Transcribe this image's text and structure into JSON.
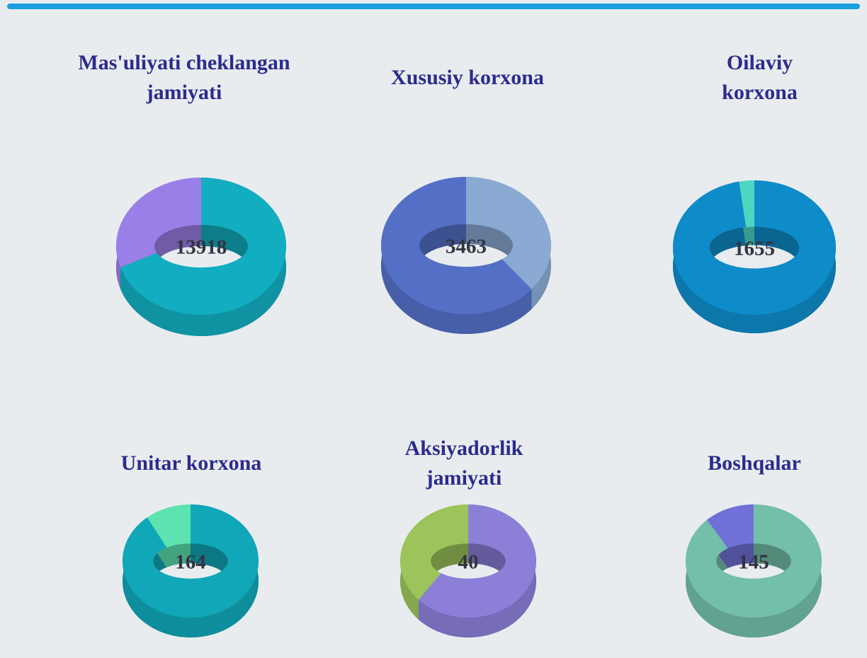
{
  "cards": [
    {
      "title": "Mas'uliyati cheklangan jamiyati",
      "total": 13918,
      "slices": [
        {
          "color": "#12adc0",
          "value": 70
        },
        {
          "color": "#9b7fe8",
          "value": 30
        }
      ]
    },
    {
      "title": "Xususiy korxona",
      "total": 3463,
      "slices": [
        {
          "color": "#8aaad4",
          "value": 36
        },
        {
          "color": "#5470c6",
          "value": 64
        }
      ]
    },
    {
      "title": "Oilaviy korxona",
      "total": 1655,
      "slices": [
        {
          "color": "#0e8cc9",
          "value": 97
        },
        {
          "color": "#4ed6c0",
          "value": 3
        }
      ]
    },
    {
      "title": "Unitar korxona",
      "total": 164,
      "slices": [
        {
          "color": "#10a7b8",
          "value": 89
        },
        {
          "color": "#5de3b0",
          "value": 11
        }
      ]
    },
    {
      "title": "Aksiyadorlik jamiyati",
      "total": 40,
      "slices": [
        {
          "color": "#8b7fd8",
          "value": 63
        },
        {
          "color": "#9cc45a",
          "value": 37
        }
      ]
    },
    {
      "title": "Boshqalar",
      "total": 145,
      "slices": [
        {
          "color": "#73bfa9",
          "value": 88
        },
        {
          "color": "#7070d8",
          "value": 12
        }
      ]
    }
  ]
}
